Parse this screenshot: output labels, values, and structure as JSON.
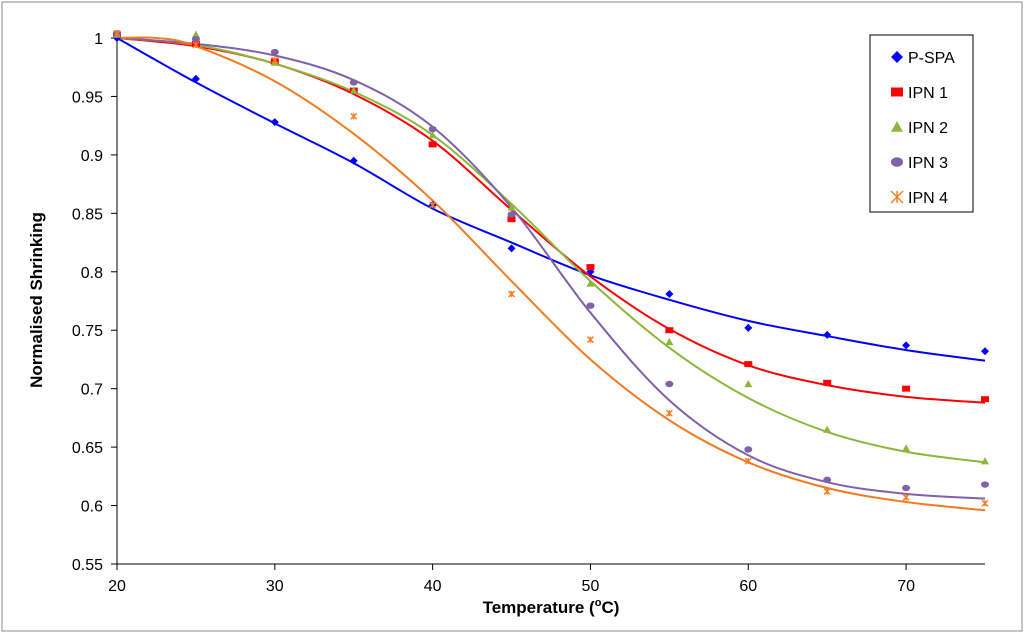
{
  "chart_data": {
    "type": "scatter",
    "title": "",
    "xlabel": "Temperature (oC)",
    "xlabel_main": "Temperature (",
    "xlabel_sup": "o",
    "xlabel_end": "C)",
    "ylabel": "Normalised Shrinking",
    "xlim": [
      20,
      75
    ],
    "ylim": [
      0.55,
      1.0
    ],
    "x_ticks": [
      20,
      30,
      40,
      50,
      60,
      70
    ],
    "y_ticks": [
      0.55,
      0.6,
      0.65,
      0.7,
      0.75,
      0.8,
      0.85,
      0.9,
      0.95,
      1.0
    ],
    "y_tick_labels": [
      "0.55",
      "0.6",
      "0.65",
      "0.7",
      "0.75",
      "0.8",
      "0.85",
      "0.9",
      "0.95",
      "1"
    ],
    "grid": false,
    "legend_position": "top-right",
    "series": [
      {
        "name": "P-SPA",
        "color": "#0000ff",
        "marker": "diamond",
        "points": [
          [
            20,
            1.0
          ],
          [
            25,
            0.965
          ],
          [
            30,
            0.928
          ],
          [
            35,
            0.895
          ],
          [
            40,
            0.857
          ],
          [
            45,
            0.82
          ],
          [
            50,
            0.8
          ],
          [
            55,
            0.781
          ],
          [
            60,
            0.752
          ],
          [
            65,
            0.746
          ],
          [
            70,
            0.737
          ],
          [
            75,
            0.732
          ]
        ],
        "trend": [
          [
            20,
            1.0
          ],
          [
            25,
            0.962
          ],
          [
            30,
            0.927
          ],
          [
            35,
            0.893
          ],
          [
            40,
            0.854
          ],
          [
            45,
            0.825
          ],
          [
            50,
            0.797
          ],
          [
            55,
            0.776
          ],
          [
            60,
            0.758
          ],
          [
            65,
            0.745
          ],
          [
            70,
            0.733
          ],
          [
            75,
            0.724
          ]
        ]
      },
      {
        "name": "IPN 1",
        "color": "#ff0000",
        "marker": "square",
        "points": [
          [
            20,
            1.003
          ],
          [
            25,
            0.995
          ],
          [
            30,
            0.98
          ],
          [
            35,
            0.955
          ],
          [
            40,
            0.909
          ],
          [
            45,
            0.845
          ],
          [
            50,
            0.804
          ],
          [
            55,
            0.75
          ],
          [
            60,
            0.721
          ],
          [
            65,
            0.705
          ],
          [
            70,
            0.7
          ],
          [
            75,
            0.691
          ]
        ],
        "trend": [
          [
            20,
            1.0
          ],
          [
            25,
            0.993
          ],
          [
            30,
            0.978
          ],
          [
            35,
            0.952
          ],
          [
            40,
            0.912
          ],
          [
            45,
            0.853
          ],
          [
            50,
            0.796
          ],
          [
            55,
            0.751
          ],
          [
            60,
            0.72
          ],
          [
            65,
            0.703
          ],
          [
            70,
            0.693
          ],
          [
            75,
            0.688
          ]
        ]
      },
      {
        "name": "IPN 2",
        "color": "#8db63c",
        "marker": "triangle",
        "points": [
          [
            20,
            1.003
          ],
          [
            25,
            1.003
          ],
          [
            30,
            0.979
          ],
          [
            35,
            0.955
          ],
          [
            40,
            0.917
          ],
          [
            45,
            0.855
          ],
          [
            50,
            0.79
          ],
          [
            55,
            0.74
          ],
          [
            60,
            0.704
          ],
          [
            65,
            0.665
          ],
          [
            70,
            0.649
          ],
          [
            75,
            0.638
          ]
        ],
        "trend": [
          [
            20,
            1.0
          ],
          [
            25,
            0.994
          ],
          [
            30,
            0.978
          ],
          [
            35,
            0.954
          ],
          [
            40,
            0.917
          ],
          [
            45,
            0.858
          ],
          [
            50,
            0.792
          ],
          [
            55,
            0.735
          ],
          [
            60,
            0.692
          ],
          [
            65,
            0.663
          ],
          [
            70,
            0.646
          ],
          [
            75,
            0.637
          ]
        ]
      },
      {
        "name": "IPN 3",
        "color": "#7f62a8",
        "marker": "circle",
        "points": [
          [
            20,
            1.004
          ],
          [
            25,
            0.999
          ],
          [
            30,
            0.988
          ],
          [
            35,
            0.962
          ],
          [
            40,
            0.922
          ],
          [
            45,
            0.849
          ],
          [
            50,
            0.771
          ],
          [
            55,
            0.704
          ],
          [
            60,
            0.648
          ],
          [
            65,
            0.622
          ],
          [
            70,
            0.615
          ],
          [
            75,
            0.618
          ]
        ],
        "trend": [
          [
            20,
            1.0
          ],
          [
            25,
            0.995
          ],
          [
            30,
            0.985
          ],
          [
            35,
            0.964
          ],
          [
            40,
            0.924
          ],
          [
            45,
            0.855
          ],
          [
            50,
            0.765
          ],
          [
            55,
            0.69
          ],
          [
            60,
            0.643
          ],
          [
            65,
            0.62
          ],
          [
            70,
            0.61
          ],
          [
            75,
            0.606
          ]
        ]
      },
      {
        "name": "IPN 4",
        "color": "#f47b20",
        "marker": "asterisk",
        "points": [
          [
            20,
            1.004
          ],
          [
            25,
            0.994
          ],
          [
            30,
            0.981
          ],
          [
            35,
            0.933
          ],
          [
            40,
            0.857
          ],
          [
            45,
            0.781
          ],
          [
            50,
            0.742
          ],
          [
            55,
            0.679
          ],
          [
            60,
            0.638
          ],
          [
            65,
            0.612
          ],
          [
            70,
            0.607
          ],
          [
            75,
            0.602
          ]
        ],
        "trend": [
          [
            20,
            1.0
          ],
          [
            22.5,
            1.0
          ],
          [
            25,
            0.993
          ],
          [
            30,
            0.963
          ],
          [
            35,
            0.918
          ],
          [
            40,
            0.861
          ],
          [
            45,
            0.792
          ],
          [
            50,
            0.725
          ],
          [
            55,
            0.673
          ],
          [
            60,
            0.637
          ],
          [
            65,
            0.615
          ],
          [
            70,
            0.603
          ],
          [
            75,
            0.596
          ]
        ]
      }
    ]
  }
}
